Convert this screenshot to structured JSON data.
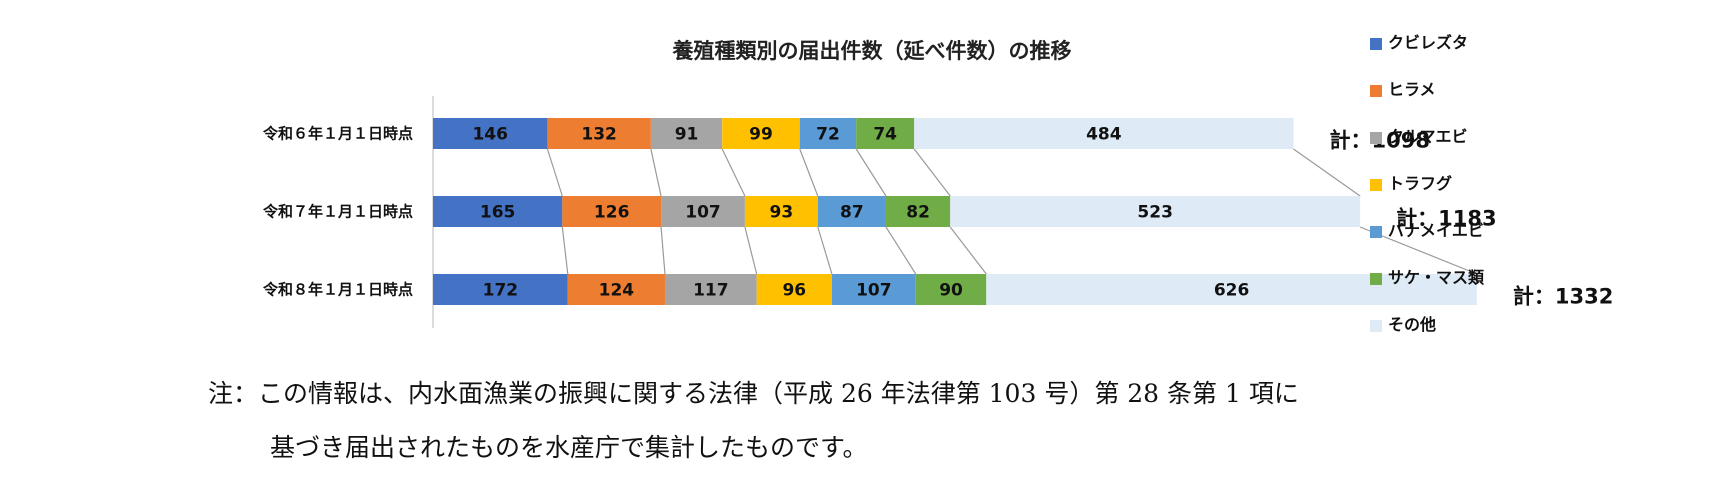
{
  "chart_data": {
    "type": "bar",
    "orientation": "horizontal",
    "stacked": true,
    "title": "養殖種類別の届出件数（延べ件数）の推移",
    "categories": [
      "令和６年１月１日時点",
      "令和７年１月１日時点",
      "令和８年１月１日時点"
    ],
    "series": [
      {
        "name": "クビレズタ",
        "color": "#4472C4",
        "values": [
          146,
          165,
          172
        ]
      },
      {
        "name": "ヒラメ",
        "color": "#ED7D31",
        "values": [
          132,
          126,
          124
        ]
      },
      {
        "name": "クルマエビ",
        "color": "#A5A5A5",
        "values": [
          91,
          107,
          117
        ]
      },
      {
        "name": "トラフグ",
        "color": "#FFC000",
        "values": [
          99,
          93,
          96
        ]
      },
      {
        "name": "バナメイエビ",
        "color": "#5B9BD5",
        "values": [
          72,
          87,
          107
        ]
      },
      {
        "name": "サケ・マス類",
        "color": "#70AD47",
        "values": [
          74,
          82,
          90
        ]
      },
      {
        "name": "その他",
        "color": "#DEEBF7",
        "values": [
          484,
          523,
          626
        ]
      }
    ],
    "totals": [
      "計：1098",
      "計：1183",
      "計：1332"
    ],
    "legend_position": "right",
    "grid": false
  },
  "note": {
    "line1": "注：この情報は、内水面漁業の振興に関する法律（平成 26 年法律第 103 号）第 28 条第 1 項に",
    "line2": "基づき届出されたものを水産庁で集計したものです。"
  }
}
